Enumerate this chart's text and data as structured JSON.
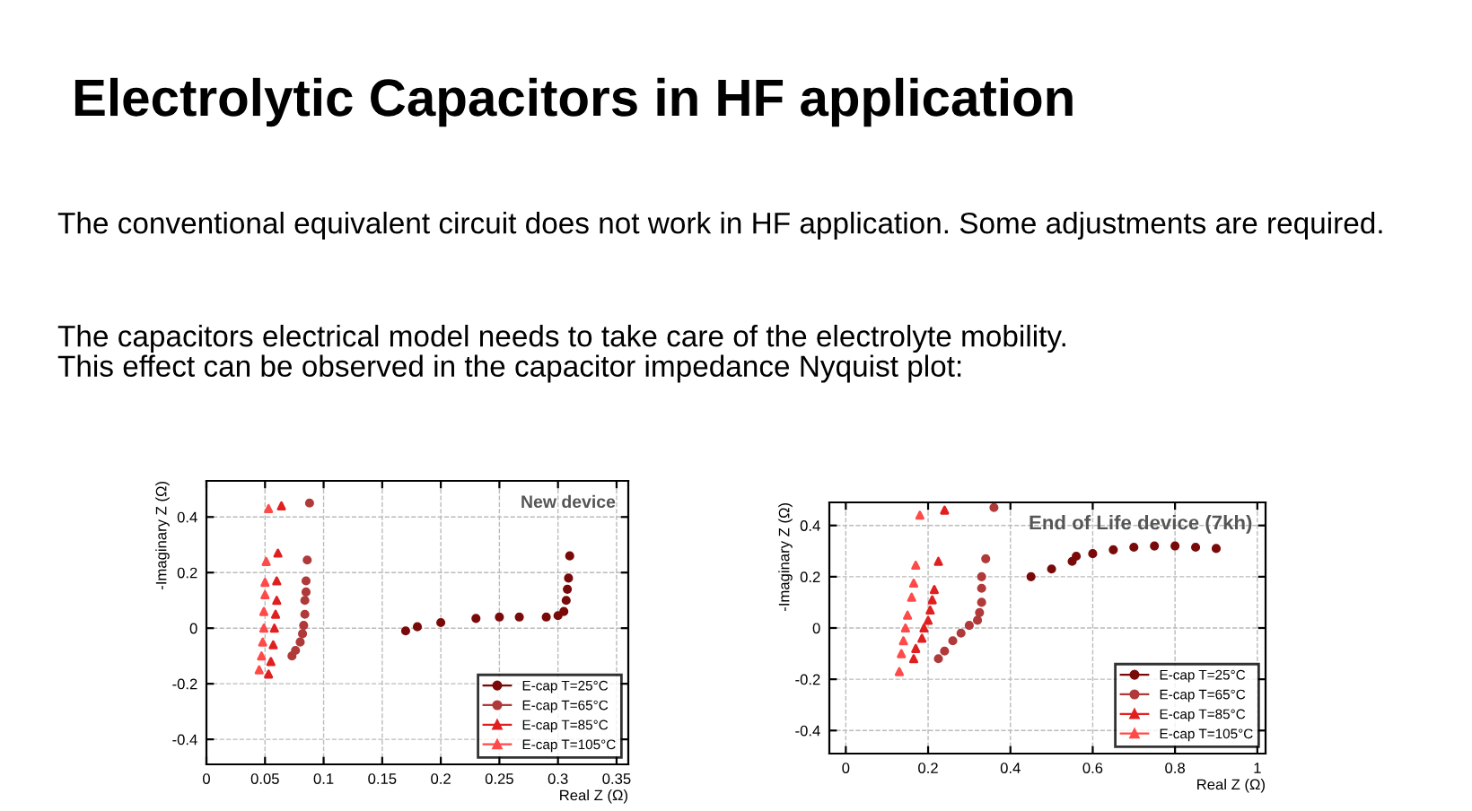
{
  "chart_data": [
    {
      "type": "scatter",
      "title": "New device",
      "xlabel": "Real Z (Ω)",
      "ylabel": "-Imaginary Z (Ω)",
      "annotations": [
        "Electrolytic Capacitors in HF application",
        "The conventional equivalent circuit does not work in HF application. Some adjustments are required.",
        "The capacitors electrical model needs to take care of the electrolyte mobility.\nThis effect can be observed in the capacitor impedance Nyquist plot:"
      ],
      "xlim": [
        0,
        0.36
      ],
      "xticks": [
        0,
        0.05,
        0.1,
        0.15,
        0.2,
        0.25,
        0.3,
        0.35
      ],
      "ylim": [
        -0.49,
        0.53
      ],
      "yticks": [
        -0.4,
        -0.2,
        0,
        0.2,
        0.4
      ],
      "grid": true,
      "legend": "bottom right",
      "series": [
        {
          "name": "E-cap T=25°C",
          "color": "#7a0a0a",
          "marker": "circle",
          "x": [
            0.17,
            0.18,
            0.2,
            0.23,
            0.25,
            0.267,
            0.29,
            0.3,
            0.305,
            0.307,
            0.308,
            0.309,
            0.31
          ],
          "values": [
            -0.01,
            0.005,
            0.02,
            0.035,
            0.04,
            0.04,
            0.04,
            0.045,
            0.06,
            0.1,
            0.14,
            0.18,
            0.26
          ]
        },
        {
          "name": "E-cap T=65°C",
          "color": "#b03a3a",
          "marker": "circle",
          "x": [
            0.073,
            0.076,
            0.08,
            0.082,
            0.083,
            0.084,
            0.084,
            0.085,
            0.085,
            0.086,
            0.088
          ],
          "values": [
            -0.1,
            -0.08,
            -0.05,
            -0.02,
            0.01,
            0.05,
            0.1,
            0.13,
            0.17,
            0.245,
            0.45
          ]
        },
        {
          "name": "E-cap T=85°C",
          "color": "#e02020",
          "marker": "triangle",
          "x": [
            0.053,
            0.055,
            0.057,
            0.058,
            0.059,
            0.06,
            0.06,
            0.061,
            0.064
          ],
          "values": [
            -0.165,
            -0.12,
            -0.06,
            0,
            0.05,
            0.1,
            0.17,
            0.27,
            0.44
          ]
        },
        {
          "name": "E-cap T=105°C",
          "color": "#ff4a4a",
          "marker": "triangle",
          "x": [
            0.045,
            0.047,
            0.048,
            0.049,
            0.049,
            0.05,
            0.05,
            0.051,
            0.053
          ],
          "values": [
            -0.15,
            -0.1,
            -0.05,
            0,
            0.06,
            0.12,
            0.165,
            0.24,
            0.43
          ]
        }
      ]
    },
    {
      "type": "scatter",
      "title": "End of Life device (7kh)",
      "xlabel": "Real Z (Ω)",
      "ylabel": "-Imaginary Z (Ω)",
      "xlim": [
        -0.04,
        1.02
      ],
      "xticks": [
        0,
        0.2,
        0.4,
        0.6,
        0.8,
        1
      ],
      "ylim": [
        -0.49,
        0.49
      ],
      "yticks": [
        -0.4,
        -0.2,
        0,
        0.2,
        0.4
      ],
      "grid": true,
      "legend": "bottom right",
      "series": [
        {
          "name": "E-cap T=25°C",
          "color": "#7a0a0a",
          "marker": "circle",
          "x": [
            0.45,
            0.5,
            0.55,
            0.56,
            0.6,
            0.65,
            0.7,
            0.75,
            0.8,
            0.85,
            0.9
          ],
          "values": [
            0.2,
            0.23,
            0.26,
            0.28,
            0.29,
            0.305,
            0.315,
            0.32,
            0.32,
            0.315,
            0.31
          ]
        },
        {
          "name": "E-cap T=65°C",
          "color": "#b03a3a",
          "marker": "circle",
          "x": [
            0.225,
            0.24,
            0.26,
            0.28,
            0.3,
            0.32,
            0.325,
            0.33,
            0.33,
            0.33,
            0.34,
            0.36
          ],
          "values": [
            -0.12,
            -0.09,
            -0.05,
            -0.02,
            0.01,
            0.03,
            0.06,
            0.1,
            0.155,
            0.2,
            0.27,
            0.47
          ]
        },
        {
          "name": "E-cap T=85°C",
          "color": "#e02020",
          "marker": "triangle",
          "x": [
            0.165,
            0.17,
            0.185,
            0.19,
            0.2,
            0.205,
            0.21,
            0.215,
            0.225,
            0.24
          ],
          "values": [
            -0.12,
            -0.08,
            -0.04,
            0,
            0.03,
            0.07,
            0.11,
            0.15,
            0.26,
            0.46
          ]
        },
        {
          "name": "E-cap T=105°C",
          "color": "#ff4a4a",
          "marker": "triangle",
          "x": [
            0.13,
            0.135,
            0.14,
            0.145,
            0.15,
            0.16,
            0.165,
            0.17,
            0.18
          ],
          "values": [
            -0.17,
            -0.1,
            -0.05,
            0,
            0.05,
            0.12,
            0.175,
            0.245,
            0.44
          ]
        }
      ]
    }
  ]
}
